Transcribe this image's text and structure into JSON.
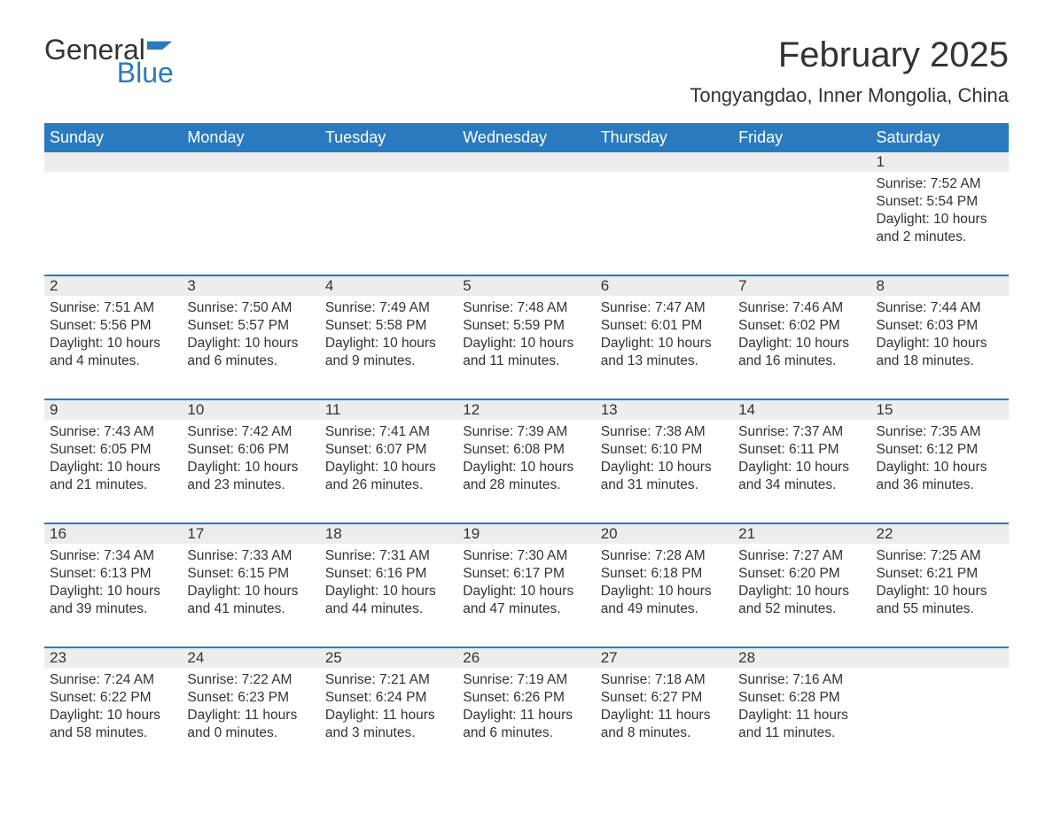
{
  "brand": {
    "general": "General",
    "blue": "Blue"
  },
  "title": "February 2025",
  "location": "Tongyangdao, Inner Mongolia, China",
  "colors": {
    "header_bg": "#2a7ac0",
    "header_text": "#ffffff",
    "strip_bg": "#ededed",
    "border": "#2a7ac0",
    "body_text": "#333333",
    "page_bg": "#ffffff"
  },
  "daysOfWeek": [
    "Sunday",
    "Monday",
    "Tuesday",
    "Wednesday",
    "Thursday",
    "Friday",
    "Saturday"
  ],
  "labels": {
    "sunrise": "Sunrise: ",
    "sunset": "Sunset: ",
    "daylight": "Daylight: "
  },
  "weeks": [
    [
      {
        "blank": true
      },
      {
        "blank": true
      },
      {
        "blank": true
      },
      {
        "blank": true
      },
      {
        "blank": true
      },
      {
        "blank": true
      },
      {
        "n": "1",
        "sunrise": "7:52 AM",
        "sunset": "5:54 PM",
        "daylight": "10 hours and 2 minutes."
      }
    ],
    [
      {
        "n": "2",
        "sunrise": "7:51 AM",
        "sunset": "5:56 PM",
        "daylight": "10 hours and 4 minutes."
      },
      {
        "n": "3",
        "sunrise": "7:50 AM",
        "sunset": "5:57 PM",
        "daylight": "10 hours and 6 minutes."
      },
      {
        "n": "4",
        "sunrise": "7:49 AM",
        "sunset": "5:58 PM",
        "daylight": "10 hours and 9 minutes."
      },
      {
        "n": "5",
        "sunrise": "7:48 AM",
        "sunset": "5:59 PM",
        "daylight": "10 hours and 11 minutes."
      },
      {
        "n": "6",
        "sunrise": "7:47 AM",
        "sunset": "6:01 PM",
        "daylight": "10 hours and 13 minutes."
      },
      {
        "n": "7",
        "sunrise": "7:46 AM",
        "sunset": "6:02 PM",
        "daylight": "10 hours and 16 minutes."
      },
      {
        "n": "8",
        "sunrise": "7:44 AM",
        "sunset": "6:03 PM",
        "daylight": "10 hours and 18 minutes."
      }
    ],
    [
      {
        "n": "9",
        "sunrise": "7:43 AM",
        "sunset": "6:05 PM",
        "daylight": "10 hours and 21 minutes."
      },
      {
        "n": "10",
        "sunrise": "7:42 AM",
        "sunset": "6:06 PM",
        "daylight": "10 hours and 23 minutes."
      },
      {
        "n": "11",
        "sunrise": "7:41 AM",
        "sunset": "6:07 PM",
        "daylight": "10 hours and 26 minutes."
      },
      {
        "n": "12",
        "sunrise": "7:39 AM",
        "sunset": "6:08 PM",
        "daylight": "10 hours and 28 minutes."
      },
      {
        "n": "13",
        "sunrise": "7:38 AM",
        "sunset": "6:10 PM",
        "daylight": "10 hours and 31 minutes."
      },
      {
        "n": "14",
        "sunrise": "7:37 AM",
        "sunset": "6:11 PM",
        "daylight": "10 hours and 34 minutes."
      },
      {
        "n": "15",
        "sunrise": "7:35 AM",
        "sunset": "6:12 PM",
        "daylight": "10 hours and 36 minutes."
      }
    ],
    [
      {
        "n": "16",
        "sunrise": "7:34 AM",
        "sunset": "6:13 PM",
        "daylight": "10 hours and 39 minutes."
      },
      {
        "n": "17",
        "sunrise": "7:33 AM",
        "sunset": "6:15 PM",
        "daylight": "10 hours and 41 minutes."
      },
      {
        "n": "18",
        "sunrise": "7:31 AM",
        "sunset": "6:16 PM",
        "daylight": "10 hours and 44 minutes."
      },
      {
        "n": "19",
        "sunrise": "7:30 AM",
        "sunset": "6:17 PM",
        "daylight": "10 hours and 47 minutes."
      },
      {
        "n": "20",
        "sunrise": "7:28 AM",
        "sunset": "6:18 PM",
        "daylight": "10 hours and 49 minutes."
      },
      {
        "n": "21",
        "sunrise": "7:27 AM",
        "sunset": "6:20 PM",
        "daylight": "10 hours and 52 minutes."
      },
      {
        "n": "22",
        "sunrise": "7:25 AM",
        "sunset": "6:21 PM",
        "daylight": "10 hours and 55 minutes."
      }
    ],
    [
      {
        "n": "23",
        "sunrise": "7:24 AM",
        "sunset": "6:22 PM",
        "daylight": "10 hours and 58 minutes."
      },
      {
        "n": "24",
        "sunrise": "7:22 AM",
        "sunset": "6:23 PM",
        "daylight": "11 hours and 0 minutes."
      },
      {
        "n": "25",
        "sunrise": "7:21 AM",
        "sunset": "6:24 PM",
        "daylight": "11 hours and 3 minutes."
      },
      {
        "n": "26",
        "sunrise": "7:19 AM",
        "sunset": "6:26 PM",
        "daylight": "11 hours and 6 minutes."
      },
      {
        "n": "27",
        "sunrise": "7:18 AM",
        "sunset": "6:27 PM",
        "daylight": "11 hours and 8 minutes."
      },
      {
        "n": "28",
        "sunrise": "7:16 AM",
        "sunset": "6:28 PM",
        "daylight": "11 hours and 11 minutes."
      },
      {
        "blank": true
      }
    ]
  ]
}
